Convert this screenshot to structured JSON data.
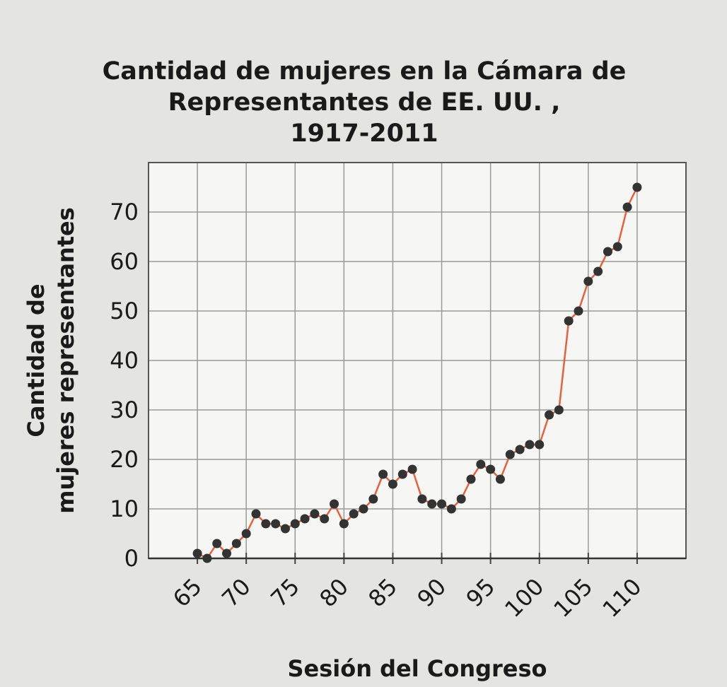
{
  "chart_data": {
    "type": "line",
    "title": [
      "Cantidad de mujeres en la Cámara de",
      "Representantes de EE. UU. ,",
      "1917-2011"
    ],
    "xlabel": "Sesión del Congreso",
    "ylabel": [
      "Cantidad de",
      "mujeres representantes"
    ],
    "x": [
      65,
      66,
      67,
      68,
      69,
      70,
      71,
      72,
      73,
      74,
      75,
      76,
      77,
      78,
      79,
      80,
      81,
      82,
      83,
      84,
      85,
      86,
      87,
      88,
      89,
      90,
      91,
      92,
      93,
      94,
      95,
      96,
      97,
      98,
      99,
      100,
      101,
      102,
      103,
      104,
      105,
      106,
      107,
      108,
      109,
      110
    ],
    "series": [
      {
        "color": "#e8603c",
        "marker_color": "#333333",
        "values": [
          1,
          0,
          3,
          1,
          3,
          5,
          9,
          7,
          7,
          6,
          7,
          8,
          9,
          8,
          11,
          7,
          9,
          10,
          12,
          17,
          15,
          17,
          18,
          12,
          11,
          11,
          10,
          12,
          16,
          19,
          18,
          16,
          21,
          22,
          23,
          23,
          29,
          30,
          48,
          50,
          56,
          58,
          62,
          63,
          71,
          75
        ]
      }
    ],
    "xlim": [
      60,
      115
    ],
    "xticks": [
      65,
      70,
      75,
      80,
      85,
      90,
      95,
      100,
      105,
      110
    ],
    "ylim": [
      0,
      80
    ],
    "yticks": [
      0,
      10,
      20,
      30,
      40,
      50,
      60,
      70
    ],
    "grid": true
  }
}
